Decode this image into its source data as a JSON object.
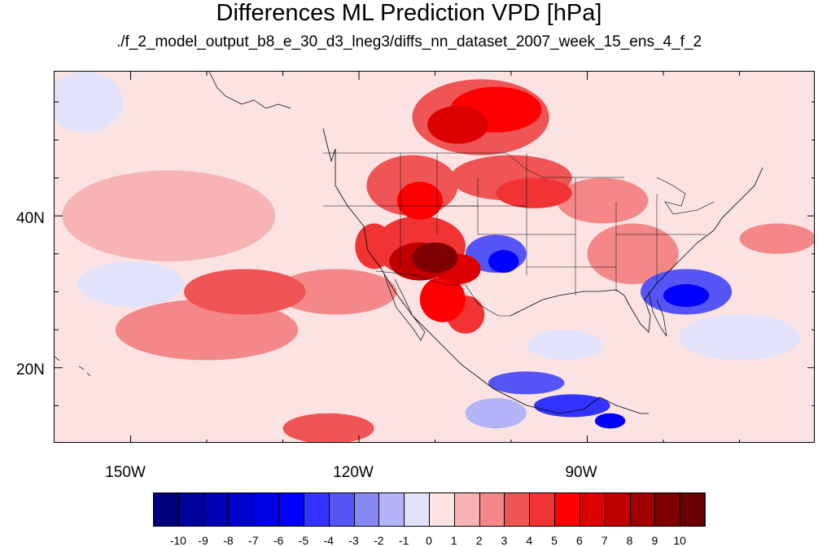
{
  "title": "Differences ML Prediction VPD [hPa]",
  "subtitle": "./f_2_model_output_b8_e_30_d3_lneg3/diffs_nn_dataset_2007_week_15_ens_4_f_2",
  "lat_labels": [
    "40N",
    "20N"
  ],
  "lon_labels": [
    "150W",
    "120W",
    "90W"
  ],
  "colorbar": {
    "labels": [
      "-10",
      "-9",
      "-8",
      "-7",
      "-6",
      "-5",
      "-4",
      "-3",
      "-2",
      "-1",
      "0",
      "1",
      "2",
      "3",
      "4",
      "5",
      "6",
      "7",
      "8",
      "9",
      "10"
    ],
    "colors": [
      "#00007f",
      "#00009a",
      "#0000b4",
      "#0000cf",
      "#0000e9",
      "#0000ff",
      "#3333ff",
      "#5555f6",
      "#8888f4",
      "#b4b4f8",
      "#e2e2fa",
      "#fce4e4",
      "#f8b4b4",
      "#f48888",
      "#f05555",
      "#f03333",
      "#ff0000",
      "#dd0000",
      "#c00000",
      "#a00000",
      "#7f0000",
      "#6a0000"
    ]
  },
  "map": {
    "extent": {
      "lon": [
        -160,
        -60
      ],
      "lat": [
        10,
        59
      ]
    },
    "anomalies": [
      {
        "lon": -104,
        "lat": 53,
        "rx": 9,
        "ry": 5,
        "value": 3
      },
      {
        "lon": -102,
        "lat": 54,
        "rx": 6,
        "ry": 3,
        "value": 5
      },
      {
        "lon": -107,
        "lat": 52,
        "rx": 4,
        "ry": 2.5,
        "value": 6
      },
      {
        "lon": -100,
        "lat": 45,
        "rx": 8,
        "ry": 3,
        "value": 3
      },
      {
        "lon": -97,
        "lat": 43,
        "rx": 5,
        "ry": 2,
        "value": 4
      },
      {
        "lon": -113,
        "lat": 44,
        "rx": 6,
        "ry": 4,
        "value": 3
      },
      {
        "lon": -112,
        "lat": 42,
        "rx": 3,
        "ry": 2.5,
        "value": 5
      },
      {
        "lon": -112,
        "lat": 36,
        "rx": 6,
        "ry": 4,
        "value": 4
      },
      {
        "lon": -112,
        "lat": 34,
        "rx": 4,
        "ry": 2.5,
        "value": 7
      },
      {
        "lon": -110,
        "lat": 34.5,
        "rx": 3,
        "ry": 2,
        "value": 9
      },
      {
        "lon": -107,
        "lat": 33,
        "rx": 3,
        "ry": 2,
        "value": 6
      },
      {
        "lon": -109,
        "lat": 29,
        "rx": 3,
        "ry": 3,
        "value": 5
      },
      {
        "lon": -106,
        "lat": 27,
        "rx": 2.5,
        "ry": 2.5,
        "value": 4
      },
      {
        "lon": -118,
        "lat": 36,
        "rx": 2.5,
        "ry": 3,
        "value": 4
      },
      {
        "lon": -102,
        "lat": 35,
        "rx": 4,
        "ry": 2.5,
        "value": -4
      },
      {
        "lon": -101,
        "lat": 34,
        "rx": 2,
        "ry": 1.5,
        "value": -6
      },
      {
        "lon": -77,
        "lat": 30,
        "rx": 6,
        "ry": 3,
        "value": -4
      },
      {
        "lon": -77,
        "lat": 29.5,
        "rx": 3,
        "ry": 1.5,
        "value": -6
      },
      {
        "lon": -98,
        "lat": 18,
        "rx": 5,
        "ry": 1.5,
        "value": -4
      },
      {
        "lon": -92,
        "lat": 15,
        "rx": 5,
        "ry": 1.5,
        "value": -5
      },
      {
        "lon": -87,
        "lat": 13,
        "rx": 2,
        "ry": 1,
        "value": -6
      },
      {
        "lon": -102,
        "lat": 14,
        "rx": 4,
        "ry": 2,
        "value": -2
      },
      {
        "lon": -93,
        "lat": 23,
        "rx": 5,
        "ry": 2,
        "value": -1
      },
      {
        "lon": -140,
        "lat": 25,
        "rx": 12,
        "ry": 4,
        "value": 2
      },
      {
        "lon": -135,
        "lat": 30,
        "rx": 8,
        "ry": 3,
        "value": 3
      },
      {
        "lon": -150,
        "lat": 31,
        "rx": 7,
        "ry": 3,
        "value": -1
      },
      {
        "lon": -156,
        "lat": 55,
        "rx": 5,
        "ry": 4,
        "value": -1
      },
      {
        "lon": -145,
        "lat": 40,
        "rx": 14,
        "ry": 6,
        "value": 1
      },
      {
        "lon": -123,
        "lat": 30,
        "rx": 8,
        "ry": 3,
        "value": 2
      },
      {
        "lon": -65,
        "lat": 37,
        "rx": 5,
        "ry": 2,
        "value": 2
      },
      {
        "lon": -70,
        "lat": 24,
        "rx": 8,
        "ry": 3,
        "value": -1
      },
      {
        "lon": -84,
        "lat": 35,
        "rx": 6,
        "ry": 4,
        "value": 2
      },
      {
        "lon": -88,
        "lat": 42,
        "rx": 6,
        "ry": 3,
        "value": 2
      },
      {
        "lon": -124,
        "lat": 12,
        "rx": 6,
        "ry": 2,
        "value": 3
      }
    ]
  }
}
